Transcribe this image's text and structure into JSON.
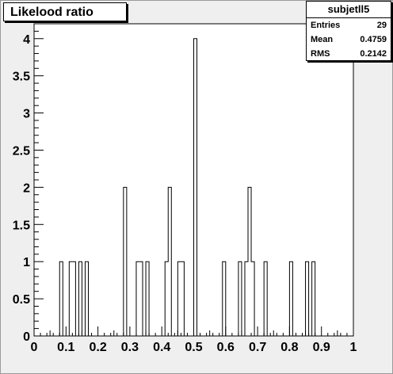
{
  "title": "Likelood ratio",
  "stats": {
    "name": "subjetll5",
    "rows": [
      {
        "label": "Entries",
        "value": "29"
      },
      {
        "label": "Mean",
        "value": "0.4759"
      },
      {
        "label": "RMS",
        "value": "0.2142"
      }
    ]
  },
  "chart_data": {
    "type": "histogram",
    "title": "Likelood ratio",
    "xlabel": "",
    "ylabel": "",
    "xlim": [
      0,
      1
    ],
    "ylim": [
      0,
      4.2
    ],
    "bins": 100,
    "grid": false,
    "x_ticks": [
      "0",
      "0.1",
      "0.2",
      "0.3",
      "0.4",
      "0.5",
      "0.6",
      "0.7",
      "0.8",
      "0.9",
      "1"
    ],
    "y_ticks": [
      "0",
      "0.5",
      "1",
      "1.5",
      "2",
      "2.5",
      "3",
      "3.5",
      "4"
    ],
    "bin_counts": [
      {
        "x": 0.085,
        "y": 1
      },
      {
        "x": 0.115,
        "y": 1
      },
      {
        "x": 0.125,
        "y": 1
      },
      {
        "x": 0.145,
        "y": 1
      },
      {
        "x": 0.165,
        "y": 1
      },
      {
        "x": 0.285,
        "y": 2
      },
      {
        "x": 0.325,
        "y": 1
      },
      {
        "x": 0.335,
        "y": 1
      },
      {
        "x": 0.355,
        "y": 1
      },
      {
        "x": 0.415,
        "y": 1
      },
      {
        "x": 0.425,
        "y": 2
      },
      {
        "x": 0.455,
        "y": 1
      },
      {
        "x": 0.465,
        "y": 1
      },
      {
        "x": 0.505,
        "y": 4
      },
      {
        "x": 0.595,
        "y": 1
      },
      {
        "x": 0.645,
        "y": 1
      },
      {
        "x": 0.665,
        "y": 1
      },
      {
        "x": 0.675,
        "y": 2
      },
      {
        "x": 0.685,
        "y": 1
      },
      {
        "x": 0.725,
        "y": 1
      },
      {
        "x": 0.805,
        "y": 1
      },
      {
        "x": 0.855,
        "y": 1
      },
      {
        "x": 0.875,
        "y": 1
      }
    ]
  }
}
